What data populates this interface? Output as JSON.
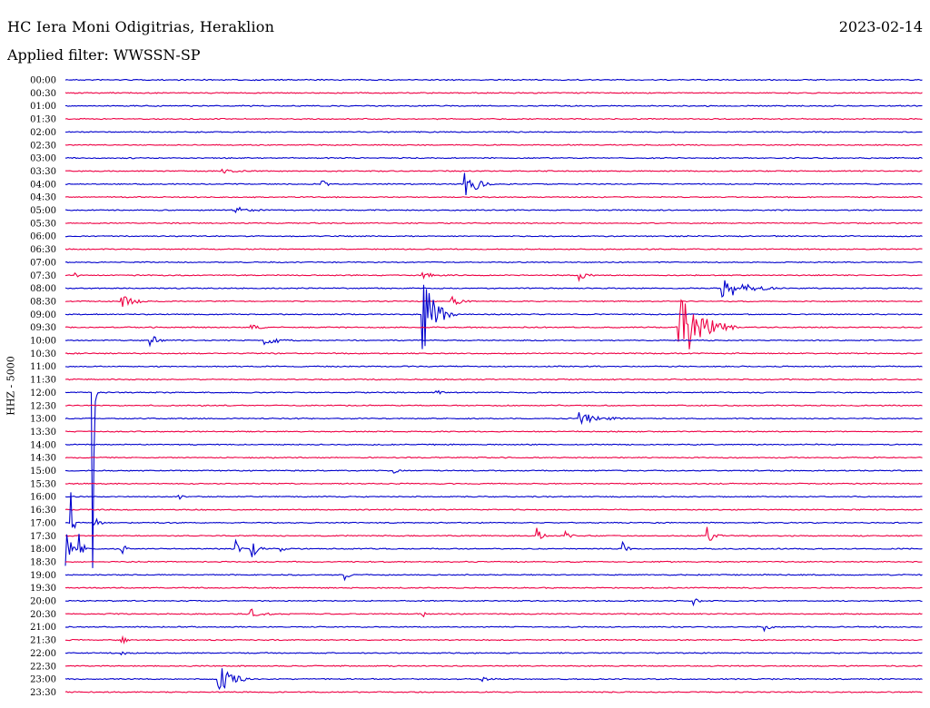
{
  "header": {
    "station": "HC Iera Moni Odigitrias, Heraklion",
    "date": "2023-02-14",
    "filter": "Applied filter: WWSSN-SP"
  },
  "chart_data": {
    "type": "line",
    "ylabel": "HHZ - 5000",
    "row_labels": [
      "00:00",
      "00:30",
      "01:00",
      "01:30",
      "02:00",
      "02:30",
      "03:00",
      "03:30",
      "04:00",
      "04:30",
      "05:00",
      "05:30",
      "06:00",
      "06:30",
      "07:00",
      "07:30",
      "08:00",
      "08:30",
      "09:00",
      "09:30",
      "10:00",
      "10:30",
      "11:00",
      "11:30",
      "12:00",
      "12:30",
      "13:00",
      "13:30",
      "14:00",
      "14:30",
      "15:00",
      "15:30",
      "16:00",
      "16:30",
      "17:00",
      "17:30",
      "18:00",
      "18:30",
      "19:00",
      "19:30",
      "20:00",
      "20:30",
      "21:00",
      "21:30",
      "22:00",
      "22:30",
      "23:00",
      "23:30"
    ],
    "trace_colors": [
      "#0000cc",
      "#ee0044"
    ],
    "minutes_per_row": 30,
    "events": [
      {
        "row": 8,
        "minute": 14.0,
        "amp": 1.2,
        "dur": 1.0
      },
      {
        "row": 8,
        "minute": 9.0,
        "amp": 0.3,
        "dur": 0.6
      },
      {
        "row": 7,
        "minute": 5.5,
        "amp": 0.2,
        "dur": 1.5
      },
      {
        "row": 10,
        "minute": 6.0,
        "amp": 0.25,
        "dur": 1.8
      },
      {
        "row": 15,
        "minute": 0.3,
        "amp": 0.3,
        "dur": 0.4
      },
      {
        "row": 15,
        "minute": 12.5,
        "amp": 0.3,
        "dur": 1.0
      },
      {
        "row": 15,
        "minute": 18.0,
        "amp": 0.35,
        "dur": 0.8
      },
      {
        "row": 16,
        "minute": 23.0,
        "amp": 1.0,
        "dur": 2.0
      },
      {
        "row": 17,
        "minute": 2.0,
        "amp": 0.6,
        "dur": 1.0
      },
      {
        "row": 17,
        "minute": 13.5,
        "amp": 0.4,
        "dur": 1.0
      },
      {
        "row": 18,
        "minute": 12.5,
        "amp": 3.0,
        "dur": 1.2
      },
      {
        "row": 19,
        "minute": 21.5,
        "amp": 2.8,
        "dur": 2.0
      },
      {
        "row": 19,
        "minute": 6.5,
        "amp": 0.25,
        "dur": 1.0
      },
      {
        "row": 20,
        "minute": 3.0,
        "amp": 0.5,
        "dur": 0.6
      },
      {
        "row": 20,
        "minute": 7.0,
        "amp": 0.4,
        "dur": 1.5
      },
      {
        "row": 24,
        "minute": 1.0,
        "amp": 6.0,
        "dur": 0.1
      },
      {
        "row": 24,
        "minute": 13.0,
        "amp": 0.3,
        "dur": 0.5
      },
      {
        "row": 26,
        "minute": 18.0,
        "amp": 0.5,
        "dur": 2.0
      },
      {
        "row": 30,
        "minute": 11.5,
        "amp": 0.2,
        "dur": 0.8
      },
      {
        "row": 32,
        "minute": 4.0,
        "amp": 0.25,
        "dur": 0.5
      },
      {
        "row": 34,
        "minute": 1.0,
        "amp": 0.8,
        "dur": 0.4
      },
      {
        "row": 34,
        "minute": 0.2,
        "amp": 3.0,
        "dur": 0.2
      },
      {
        "row": 35,
        "minute": 16.5,
        "amp": 0.6,
        "dur": 0.5
      },
      {
        "row": 35,
        "minute": 17.5,
        "amp": 0.6,
        "dur": 0.5
      },
      {
        "row": 35,
        "minute": 22.5,
        "amp": 1.0,
        "dur": 0.5
      },
      {
        "row": 36,
        "minute": 0.0,
        "amp": 1.5,
        "dur": 0.5
      },
      {
        "row": 36,
        "minute": 0.5,
        "amp": 1.0,
        "dur": 0.4
      },
      {
        "row": 36,
        "minute": 2.0,
        "amp": 0.5,
        "dur": 0.4
      },
      {
        "row": 36,
        "minute": 6.0,
        "amp": 0.5,
        "dur": 0.3
      },
      {
        "row": 36,
        "minute": 6.5,
        "amp": 0.8,
        "dur": 0.6
      },
      {
        "row": 36,
        "minute": 7.5,
        "amp": 0.5,
        "dur": 0.4
      },
      {
        "row": 36,
        "minute": 19.5,
        "amp": 0.6,
        "dur": 0.4
      },
      {
        "row": 38,
        "minute": 9.8,
        "amp": 0.5,
        "dur": 0.3
      },
      {
        "row": 40,
        "minute": 22.0,
        "amp": 0.3,
        "dur": 0.6
      },
      {
        "row": 41,
        "minute": 6.5,
        "amp": 0.4,
        "dur": 1.2
      },
      {
        "row": 41,
        "minute": 12.5,
        "amp": 0.3,
        "dur": 0.3
      },
      {
        "row": 42,
        "minute": 24.5,
        "amp": 0.3,
        "dur": 0.6
      },
      {
        "row": 43,
        "minute": 2.0,
        "amp": 0.3,
        "dur": 0.5
      },
      {
        "row": 44,
        "minute": 2.0,
        "amp": 0.25,
        "dur": 0.4
      },
      {
        "row": 46,
        "minute": 5.3,
        "amp": 1.5,
        "dur": 1.2
      },
      {
        "row": 46,
        "minute": 14.5,
        "amp": 0.3,
        "dur": 0.8
      }
    ]
  }
}
